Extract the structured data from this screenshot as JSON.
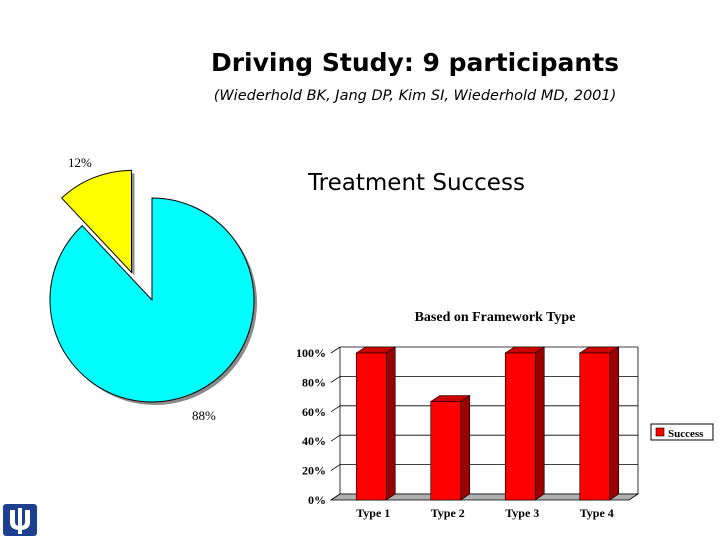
{
  "slide": {
    "title": "Driving Study:  9 participants",
    "citation": "(Wiederhold BK, Jang DP, Kim SI, Wiederhold MD, 2001)",
    "subtitle": "Treatment Success"
  },
  "colors": {
    "pie_main": "#00ffff",
    "pie_exploded": "#ffff00",
    "bar_front": "#ff0000",
    "bar_side": "#990000",
    "bar_top": "#cc0000",
    "floor": "#b0b0b0"
  },
  "chart_data": [
    {
      "type": "pie",
      "slices": [
        {
          "label": "88%",
          "value": 88
        },
        {
          "label": "12%",
          "value": 12
        }
      ]
    },
    {
      "type": "bar",
      "title": "Based on Framework Type",
      "categories": [
        "Type 1",
        "Type 2",
        "Type 3",
        "Type 4"
      ],
      "series": [
        {
          "name": "Success",
          "values": [
            100,
            67,
            100,
            100
          ]
        }
      ],
      "ylim": [
        0,
        100
      ],
      "yticks": [
        "0%",
        "20%",
        "40%",
        "60%",
        "80%",
        "100%"
      ],
      "grid": true,
      "legend": "right"
    }
  ]
}
